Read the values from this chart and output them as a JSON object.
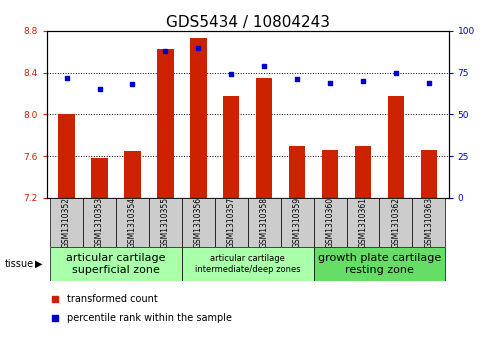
{
  "title": "GDS5434 / 10804243",
  "samples": [
    "GSM1310352",
    "GSM1310353",
    "GSM1310354",
    "GSM1310355",
    "GSM1310356",
    "GSM1310357",
    "GSM1310358",
    "GSM1310359",
    "GSM1310360",
    "GSM1310361",
    "GSM1310362",
    "GSM1310363"
  ],
  "bar_values": [
    8.0,
    7.58,
    7.65,
    8.63,
    8.73,
    8.18,
    8.35,
    7.7,
    7.66,
    7.7,
    8.18,
    7.66
  ],
  "dot_values": [
    72,
    65,
    68,
    88,
    90,
    74,
    79,
    71,
    69,
    70,
    75,
    69
  ],
  "ylim_left": [
    7.2,
    8.8
  ],
  "ylim_right": [
    0,
    100
  ],
  "yticks_left": [
    7.2,
    7.6,
    8.0,
    8.4,
    8.8
  ],
  "yticks_right": [
    0,
    25,
    50,
    75,
    100
  ],
  "bar_color": "#cc2200",
  "dot_color": "#0000cc",
  "bar_bottom": 7.2,
  "tissue_groups": [
    {
      "label": "articular cartilage\nsuperficial zone",
      "start": 0,
      "end": 4,
      "color": "#aaffaa",
      "fontsize": 8
    },
    {
      "label": "articular cartilage\nintermediate/deep zones",
      "start": 4,
      "end": 8,
      "color": "#aaffaa",
      "fontsize": 6
    },
    {
      "label": "growth plate cartilage\nresting zone",
      "start": 8,
      "end": 12,
      "color": "#66dd66",
      "fontsize": 8
    }
  ],
  "legend_bar_label": "transformed count",
  "legend_dot_label": "percentile rank within the sample",
  "tissue_label": "tissue",
  "grid_color": "black",
  "title_fontsize": 11,
  "tick_fontsize": 6.5,
  "xtick_fontsize": 5.5,
  "label_fontsize": 8,
  "bar_width": 0.5
}
